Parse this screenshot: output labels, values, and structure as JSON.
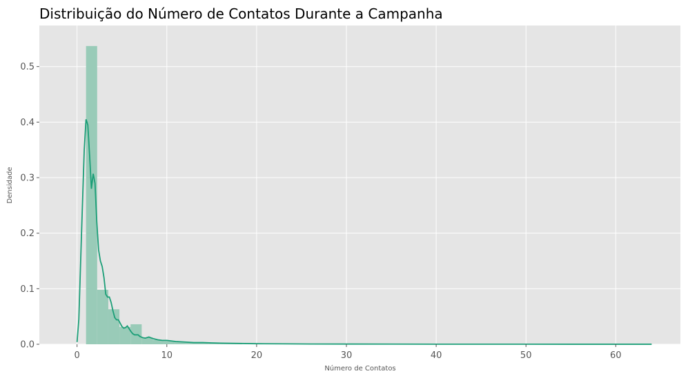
{
  "chart_data": {
    "type": "histogram",
    "title": "Distribuição do Número de Contatos Durante a Campanha",
    "xlabel": "Número de Contatos",
    "ylabel": "Densidade",
    "xlim": [
      -4.2,
      67.2
    ],
    "ylim": [
      0,
      0.574
    ],
    "x_ticks": [
      0,
      10,
      20,
      30,
      40,
      50,
      60
    ],
    "y_ticks": [
      0.0,
      0.1,
      0.2,
      0.3,
      0.4,
      0.5
    ],
    "grid": true,
    "bin_width": 1.24,
    "bins": [
      {
        "x0": 1.0,
        "x1": 2.24,
        "density": 0.537
      },
      {
        "x0": 2.24,
        "x1": 3.48,
        "density": 0.098
      },
      {
        "x0": 3.48,
        "x1": 4.72,
        "density": 0.063
      },
      {
        "x0": 4.72,
        "x1": 5.96,
        "density": 0.031
      },
      {
        "x0": 5.96,
        "x1": 7.2,
        "density": 0.036
      },
      {
        "x0": 7.2,
        "x1": 8.44,
        "density": 0.012
      },
      {
        "x0": 8.44,
        "x1": 9.68,
        "density": 0.008
      },
      {
        "x0": 9.68,
        "x1": 10.92,
        "density": 0.006
      },
      {
        "x0": 10.92,
        "x1": 12.16,
        "density": 0.004
      },
      {
        "x0": 12.16,
        "x1": 13.4,
        "density": 0.003
      },
      {
        "x0": 13.4,
        "x1": 14.64,
        "density": 0.002
      },
      {
        "x0": 14.64,
        "x1": 15.88,
        "density": 0.002
      },
      {
        "x0": 15.88,
        "x1": 17.12,
        "density": 0.0015
      },
      {
        "x0": 17.12,
        "x1": 18.36,
        "density": 0.001
      }
    ],
    "kde": {
      "x": [
        0,
        0.2,
        0.5,
        0.8,
        1.0,
        1.2,
        1.4,
        1.6,
        1.8,
        2.0,
        2.2,
        2.4,
        2.6,
        2.8,
        3.0,
        3.2,
        3.4,
        3.6,
        3.8,
        4.0,
        4.2,
        4.4,
        4.6,
        4.8,
        5.0,
        5.2,
        5.4,
        5.6,
        5.8,
        6.0,
        6.2,
        6.4,
        6.6,
        6.8,
        7.0,
        7.3,
        7.6,
        8.0,
        8.5,
        9.0,
        9.5,
        10.0,
        11.0,
        12.0,
        13.0,
        14.0,
        15.0,
        16.0,
        18.0,
        20.0,
        23.0,
        26.0,
        30.0,
        35.0,
        40.0,
        45.0,
        50.0,
        55.0,
        60.0,
        64.0
      ],
      "y": [
        0.004,
        0.045,
        0.2,
        0.35,
        0.405,
        0.395,
        0.34,
        0.28,
        0.307,
        0.29,
        0.22,
        0.17,
        0.15,
        0.14,
        0.12,
        0.09,
        0.085,
        0.085,
        0.075,
        0.06,
        0.048,
        0.044,
        0.044,
        0.038,
        0.032,
        0.029,
        0.03,
        0.033,
        0.028,
        0.023,
        0.019,
        0.017,
        0.017,
        0.017,
        0.014,
        0.012,
        0.011,
        0.013,
        0.01,
        0.008,
        0.007,
        0.007,
        0.005,
        0.004,
        0.003,
        0.003,
        0.0025,
        0.002,
        0.0015,
        0.001,
        0.0008,
        0.0005,
        0.0004,
        0.0003,
        0.0002,
        0.0002,
        0.0002,
        0.0001,
        0.0001,
        0.0001
      ]
    },
    "colors": {
      "background": "#e5e5e5",
      "grid": "#ffffff",
      "bar": "#99cbb8",
      "line": "#1b9e77"
    }
  }
}
